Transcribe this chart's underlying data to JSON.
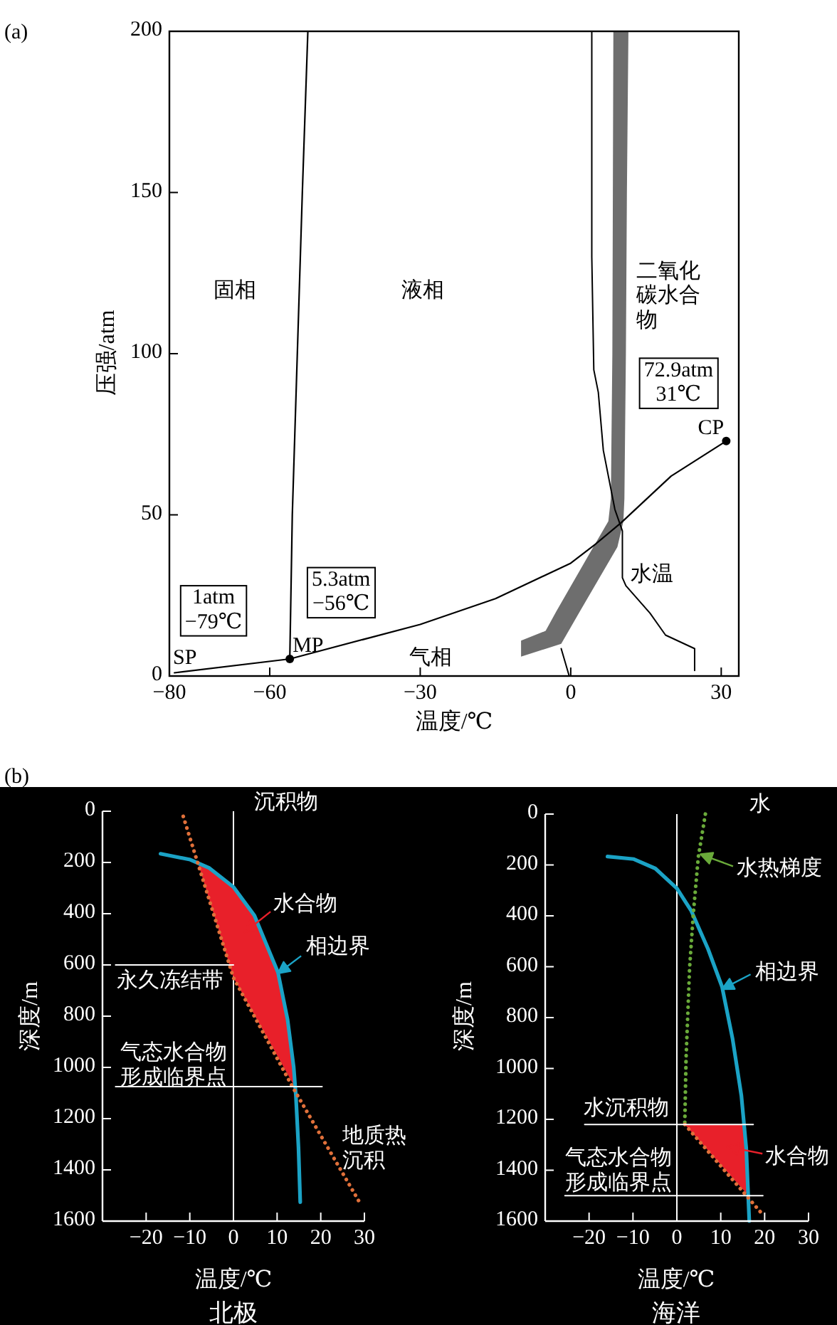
{
  "chart_data": [
    {
      "type": "line",
      "title": "(a)",
      "xlabel": "温度/℃",
      "ylabel": "压强/atm",
      "xlim": [
        -80,
        33.5
      ],
      "xticks": [
        -80,
        -60,
        -30,
        0,
        30
      ],
      "ylim": [
        0,
        200
      ],
      "yticks": [
        0,
        50,
        100,
        150,
        200
      ],
      "grid": false,
      "annotations": [
        "固相",
        "液相",
        "气相",
        {
          "text": "SP",
          "x": -79,
          "y": 1
        },
        {
          "text": "MP",
          "x": -56,
          "y": 5.3
        },
        {
          "text": "CP",
          "x": 31,
          "y": 72.9
        },
        {
          "text": "1atm\n−79℃",
          "x": -79,
          "y": 1
        },
        {
          "text": "5.3atm\n−56℃",
          "x": -56,
          "y": 5.3
        },
        {
          "text": "72.9atm\n31℃",
          "x": 31,
          "y": 72.9
        }
      ],
      "series": [
        {
          "type": "area",
          "name": "二氧化碳水合物",
          "color": "#6e6e6e",
          "x": [
            8.5,
            11.5,
            11.2,
            11,
            10.7,
            10.5,
            9.3,
            1.8,
            -1.9,
            -9.9,
            -9.9,
            -5,
            -2.9,
            4.5,
            7.5,
            8,
            8.3,
            8.4
          ],
          "values": [
            200,
            200,
            150,
            100,
            55,
            48,
            40,
            20,
            10,
            6,
            11,
            14,
            20,
            40,
            48,
            55,
            100,
            150
          ]
        },
        {
          "type": "line",
          "color": "#000000",
          "x": [
            -56,
            -55.5,
            -53.5,
            -52.4
          ],
          "values": [
            5.3,
            50,
            150,
            200
          ]
        },
        {
          "type": "line",
          "color": "#000000",
          "x": [
            -79,
            -56,
            -40,
            -30,
            -15,
            0,
            5,
            10,
            20,
            31
          ],
          "values": [
            1,
            5.3,
            11.9,
            16,
            24,
            35,
            41,
            47.5,
            62,
            72.9
          ]
        },
        {
          "type": "line",
          "name": "水温",
          "color": "#000000",
          "x": [
            4.2,
            4.2,
            4.6,
            5.5,
            6.5,
            8.8,
            10.3,
            10.3,
            11,
            15.8,
            18.9,
            24.7,
            24.7
          ],
          "values": [
            200,
            130,
            95,
            88,
            70,
            51.7,
            45,
            30.5,
            28,
            19.5,
            12.7,
            8.5,
            1.7
          ]
        },
        {
          "type": "line",
          "color": "#000000",
          "x": [
            -1.9,
            -0.3
          ],
          "values": [
            8.5,
            0
          ]
        },
        {
          "type": "scatter",
          "marker": "circle",
          "color": "#000000",
          "x": [
            -56,
            31
          ],
          "values": [
            5.3,
            72.9
          ]
        }
      ]
    },
    {
      "type": "line",
      "title": "(b)",
      "subtitle": "北极",
      "xlabel": "温度/℃",
      "ylabel": "深度/m",
      "xlim": [
        -30,
        30
      ],
      "xticks": [
        -20,
        -10,
        0,
        10,
        20,
        30
      ],
      "ylim": [
        1600,
        0
      ],
      "yticks": [
        0,
        200,
        400,
        600,
        800,
        1000,
        1200,
        1400,
        1600
      ],
      "grid": false,
      "annotations": [
        "沉积物"
      ],
      "ref_lines": [
        {
          "axis": "x",
          "value": 0,
          "color": "#ffffff"
        }
      ],
      "series": [
        {
          "type": "area",
          "name": "水合物",
          "color": "#e8202a",
          "x": [
            -8,
            -5,
            0,
            4.8,
            7.5,
            10.2,
            12.4,
            13.5,
            14,
            0
          ],
          "values": [
            210,
            222,
            296,
            407,
            518,
            629,
            814,
            1000,
            1075,
            650
          ]
        },
        {
          "type": "line",
          "name": "相边界",
          "color": "#1ba3c6",
          "x": [
            -16.7,
            -9.9,
            -5.5,
            0,
            4.8,
            7.5,
            10.2,
            12.4,
            13.8,
            14.3,
            14.9,
            15.3
          ],
          "values": [
            166,
            189,
            222,
            296,
            407,
            518,
            629,
            814,
            999,
            1110,
            1313,
            1526
          ]
        },
        {
          "type": "line",
          "name": "地质热沉积",
          "color": "#e0703a",
          "line_style": "dotted",
          "x": [
            -11.5,
            0,
            13.5,
            29
          ],
          "values": [
            20,
            650,
            1075,
            1530
          ]
        },
        {
          "type": "line",
          "name": "永久冻结带",
          "color": "#ffffff",
          "x": [
            -27,
            0
          ],
          "values": [
            600,
            600
          ]
        },
        {
          "type": "line",
          "name": "气态水合物形成临界点",
          "color": "#ffffff",
          "x": [
            -27,
            20.3
          ],
          "values": [
            1075,
            1075
          ]
        }
      ]
    },
    {
      "type": "line",
      "subtitle": "海洋",
      "xlabel": "温度/℃",
      "ylabel": "深度/m",
      "xlim": [
        -30,
        30
      ],
      "xticks": [
        -20,
        -10,
        0,
        10,
        20,
        30
      ],
      "ylim": [
        1600,
        0
      ],
      "yticks": [
        0,
        200,
        400,
        600,
        800,
        1000,
        1200,
        1400,
        1600
      ],
      "grid": false,
      "legend": "right",
      "annotations": [
        "水"
      ],
      "ref_lines": [
        {
          "axis": "x",
          "value": 0,
          "color": "#ffffff"
        }
      ],
      "series": [
        {
          "type": "area",
          "name": "水合物",
          "color": "#e8202a",
          "x": [
            1.8,
            15.3,
            15.8,
            16.2
          ],
          "values": [
            1220,
            1220,
            1312,
            1498
          ]
        },
        {
          "type": "line",
          "name": "相边界",
          "color": "#1ba3c6",
          "x": [
            -15.8,
            -9.8,
            -4.9,
            0,
            3.3,
            7.1,
            10.3,
            12.7,
            14.7,
            15.8,
            16.5
          ],
          "values": [
            167,
            177,
            214,
            292,
            381,
            530,
            679,
            884,
            1107,
            1312,
            1600
          ]
        },
        {
          "type": "line",
          "name": "水热梯度",
          "color": "#6aaa3a",
          "line_style": "dotted",
          "x": [
            6.5,
            4.9,
            3.8,
            2.9,
            2.1,
            1.8
          ],
          "values": [
            0,
            167,
            381,
            605,
            958,
            1219
          ]
        },
        {
          "type": "line",
          "color": "#e0703a",
          "line_style": "dotted",
          "x": [
            1.8,
            19
          ],
          "values": [
            1220,
            1563
          ]
        },
        {
          "type": "line",
          "name": "水沉积物",
          "color": "#ffffff",
          "x": [
            -21,
            17.4
          ],
          "values": [
            1220,
            1220
          ]
        },
        {
          "type": "line",
          "name": "气态水合物形成临界点",
          "color": "#ffffff",
          "x": [
            -25.5,
            19.6
          ],
          "values": [
            1500,
            1500
          ]
        }
      ]
    }
  ]
}
